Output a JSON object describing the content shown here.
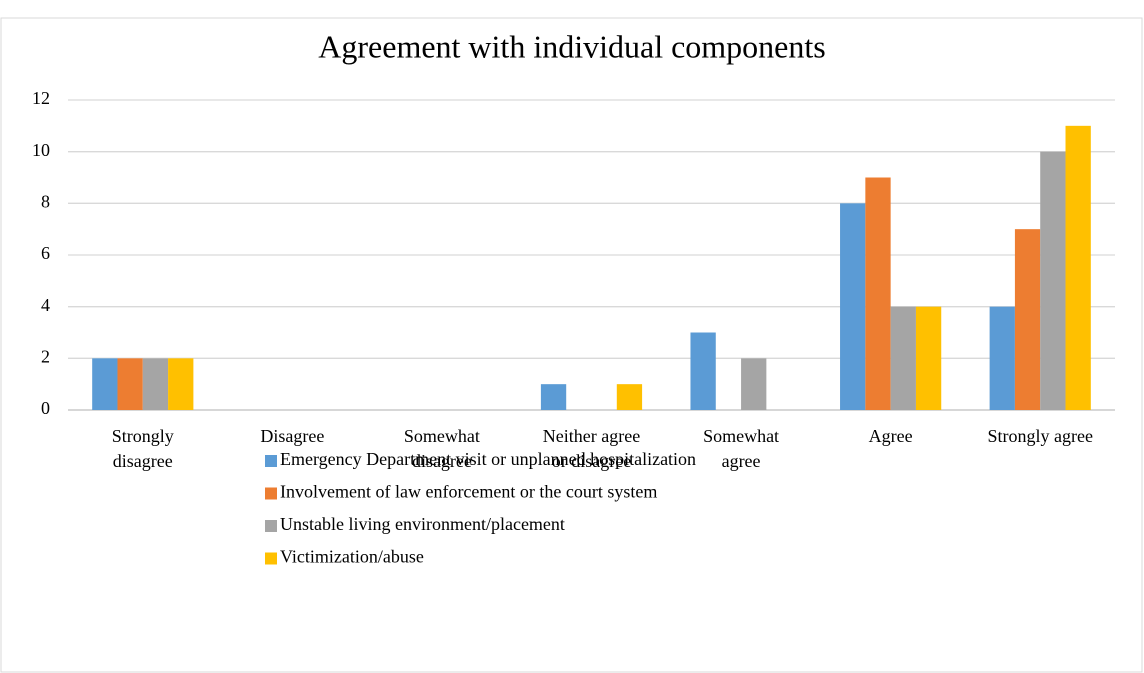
{
  "chart_data": {
    "type": "bar",
    "title": "Agreement with individual components",
    "categories": [
      "Strongly disagree",
      "Disagree",
      "Somewhat disagree",
      "Neither agree or disagree",
      "Somewhat agree",
      "Agree",
      "Strongly agree"
    ],
    "series": [
      {
        "name": "Emergency Department visit or unplanned hospitalization",
        "color": "#5b9bd5",
        "values": [
          2,
          0,
          0,
          1,
          3,
          8,
          4
        ]
      },
      {
        "name": "Involvement of law enforcement or the court system",
        "color": "#ed7d31",
        "values": [
          2,
          0,
          0,
          0,
          0,
          9,
          7
        ]
      },
      {
        "name": "Unstable living environment/placement",
        "color": "#a5a5a5",
        "values": [
          2,
          0,
          0,
          0,
          2,
          4,
          10
        ]
      },
      {
        "name": "Victimization/abuse",
        "color": "#ffc000",
        "values": [
          2,
          0,
          0,
          1,
          0,
          4,
          11
        ]
      }
    ],
    "ylim": [
      0,
      12
    ],
    "yticks": [
      0,
      2,
      4,
      6,
      8,
      10,
      12
    ],
    "grid": true,
    "legend": "bottom"
  }
}
